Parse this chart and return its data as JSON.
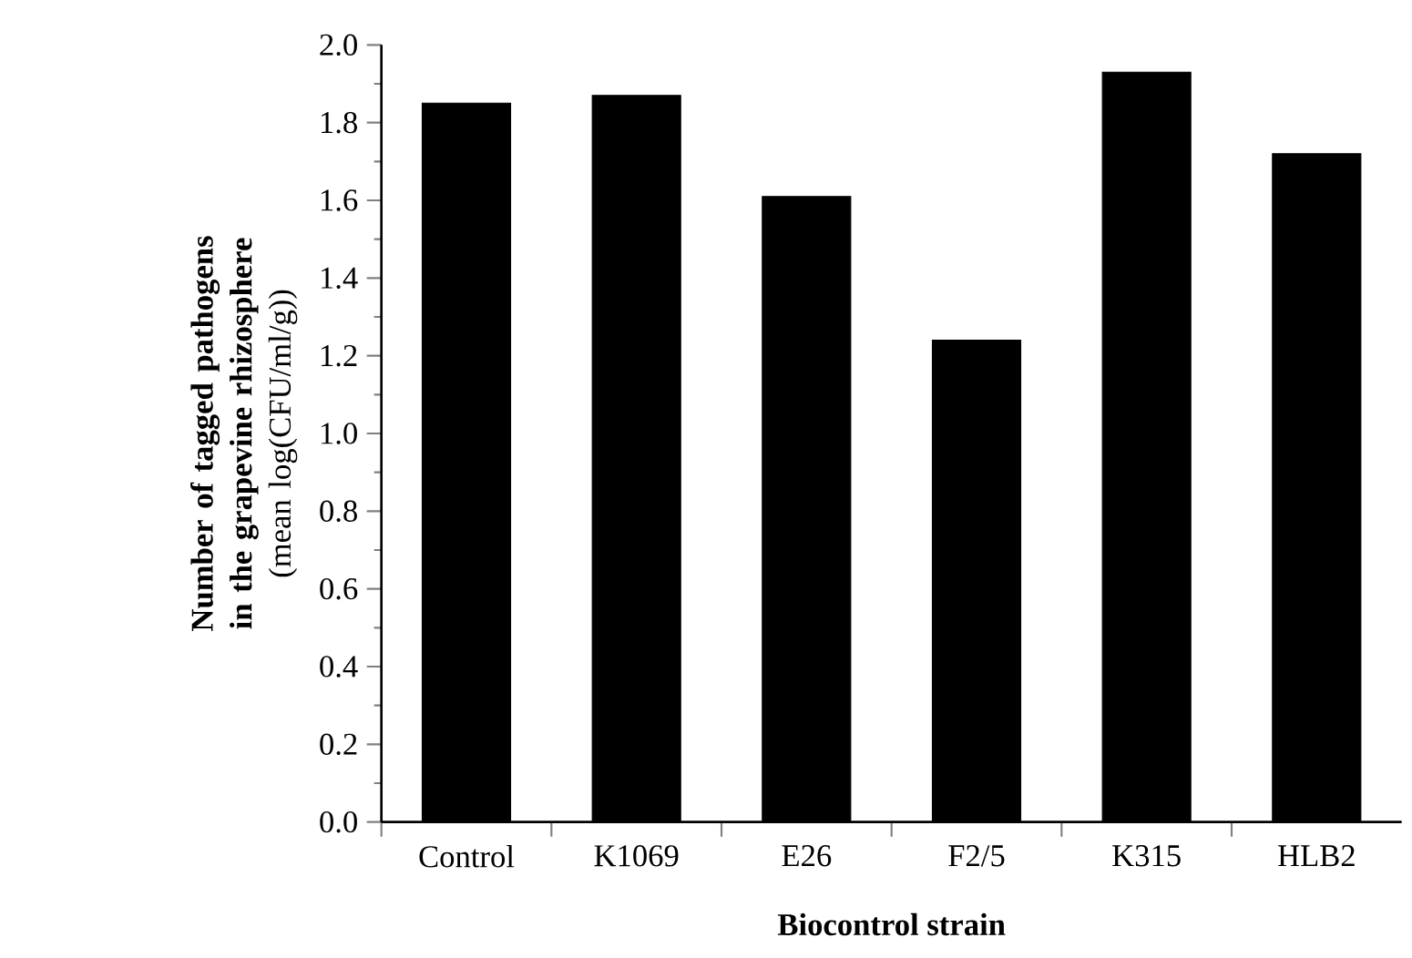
{
  "chart_data": {
    "type": "bar",
    "xlabel": "Biocontrol strain",
    "ylabel": "**Number of tagged pathogens in the grapevine rhizosphere** (mean log(CFU/ml/g))",
    "categories": [
      "Control",
      "K1069",
      "E26",
      "F2/5",
      "K315",
      "HLB2"
    ],
    "values": [
      1.85,
      1.87,
      1.61,
      1.24,
      1.93,
      1.72
    ],
    "color": "#000000",
    "ylim": [
      0,
      2.0
    ],
    "yticks": [
      {
        "value": 0,
        "label": "0.0"
      },
      0.2,
      0.4,
      0.6,
      0.8,
      {
        "value": 1.0,
        "label": "1.0"
      },
      1.2,
      1.4,
      1.6,
      1.8,
      {
        "value": 2.0,
        "label": "2.0"
      }
    ],
    "grid": false
  }
}
